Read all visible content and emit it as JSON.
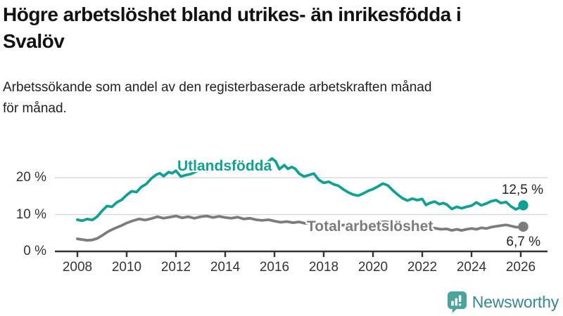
{
  "header": {
    "title": "Högre arbetslöshet bland utrikes- än inrikesfödda i\nSvalöv",
    "subtitle": "Arbetssökande som andel av den registerbaserade arbetskraften månad\nför månad."
  },
  "colors": {
    "accent_teal": "#13a094",
    "series_gray": "#7c7c7c",
    "gridline": "#dadada",
    "axis": "#333333",
    "logo_icon": "#4aa49b",
    "logo_text": "#3a868c"
  },
  "chart_data": {
    "type": "line",
    "title": "Högre arbetslöshet bland utrikes- än inrikesfödda i Svalöv",
    "xlabel": "",
    "ylabel": "",
    "grid": "horizontal",
    "legend_position": "inline-labels",
    "x_ticks": [
      2008,
      2010,
      2012,
      2014,
      2016,
      2018,
      2020,
      2022,
      2024,
      2026
    ],
    "x_tick_labels": [
      "2008",
      "2010",
      "2012",
      "2014",
      "2016",
      "2018",
      "2020",
      "2022",
      "2024",
      "2026"
    ],
    "y_ticks": [
      0,
      10,
      20
    ],
    "y_tick_labels": [
      "0 %",
      "10 %",
      "20 %"
    ],
    "xlim": [
      2007.1,
      2027.1
    ],
    "ylim": [
      0,
      29
    ],
    "series": [
      {
        "name": "Utlandsfödda",
        "color": "#13a094",
        "end_label": "12,5 %",
        "end_value": 12.5,
        "points": [
          [
            2008.0,
            8.6
          ],
          [
            2008.2,
            8.3
          ],
          [
            2008.4,
            8.8
          ],
          [
            2008.6,
            8.5
          ],
          [
            2008.8,
            9.4
          ],
          [
            2009.0,
            11.0
          ],
          [
            2009.2,
            12.3
          ],
          [
            2009.4,
            12.1
          ],
          [
            2009.6,
            13.3
          ],
          [
            2009.8,
            14.0
          ],
          [
            2010.0,
            15.3
          ],
          [
            2010.2,
            16.3
          ],
          [
            2010.4,
            16.1
          ],
          [
            2010.6,
            17.5
          ],
          [
            2010.8,
            18.3
          ],
          [
            2011.0,
            19.8
          ],
          [
            2011.2,
            20.8
          ],
          [
            2011.35,
            21.2
          ],
          [
            2011.5,
            20.4
          ],
          [
            2011.7,
            21.5
          ],
          [
            2011.85,
            21.2
          ],
          [
            2012.0,
            21.9
          ],
          [
            2012.2,
            20.3
          ],
          [
            2012.4,
            20.7
          ],
          [
            2012.6,
            21.0
          ],
          [
            2012.8,
            21.6
          ],
          [
            2013.0,
            22.3
          ],
          [
            2013.25,
            21.8
          ],
          [
            2013.5,
            22.4
          ],
          [
            2013.75,
            22.1
          ],
          [
            2014.0,
            22.7
          ],
          [
            2014.25,
            22.3
          ],
          [
            2014.5,
            23.0
          ],
          [
            2014.75,
            22.7
          ],
          [
            2015.0,
            23.3
          ],
          [
            2015.25,
            23.1
          ],
          [
            2015.5,
            23.6
          ],
          [
            2015.7,
            24.1
          ],
          [
            2015.9,
            25.2
          ],
          [
            2016.05,
            24.4
          ],
          [
            2016.2,
            22.3
          ],
          [
            2016.4,
            23.4
          ],
          [
            2016.55,
            22.4
          ],
          [
            2016.7,
            22.9
          ],
          [
            2016.85,
            22.4
          ],
          [
            2017.0,
            21.1
          ],
          [
            2017.2,
            20.3
          ],
          [
            2017.4,
            20.7
          ],
          [
            2017.6,
            21.1
          ],
          [
            2017.8,
            19.4
          ],
          [
            2018.0,
            18.6
          ],
          [
            2018.2,
            18.9
          ],
          [
            2018.4,
            18.2
          ],
          [
            2018.6,
            17.8
          ],
          [
            2018.8,
            16.8
          ],
          [
            2019.0,
            16.0
          ],
          [
            2019.2,
            15.4
          ],
          [
            2019.4,
            15.1
          ],
          [
            2019.6,
            15.7
          ],
          [
            2019.8,
            16.4
          ],
          [
            2020.0,
            16.9
          ],
          [
            2020.2,
            17.6
          ],
          [
            2020.4,
            18.4
          ],
          [
            2020.6,
            17.9
          ],
          [
            2020.8,
            16.6
          ],
          [
            2021.0,
            15.4
          ],
          [
            2021.2,
            14.4
          ],
          [
            2021.4,
            13.8
          ],
          [
            2021.6,
            14.3
          ],
          [
            2021.8,
            13.9
          ],
          [
            2022.0,
            14.2
          ],
          [
            2022.15,
            12.6
          ],
          [
            2022.3,
            13.1
          ],
          [
            2022.5,
            13.5
          ],
          [
            2022.7,
            12.8
          ],
          [
            2022.85,
            13.1
          ],
          [
            2023.0,
            12.7
          ],
          [
            2023.2,
            11.5
          ],
          [
            2023.4,
            12.1
          ],
          [
            2023.6,
            11.7
          ],
          [
            2023.8,
            12.1
          ],
          [
            2024.0,
            12.4
          ],
          [
            2024.2,
            13.3
          ],
          [
            2024.4,
            12.5
          ],
          [
            2024.6,
            13.0
          ],
          [
            2024.8,
            13.6
          ],
          [
            2025.0,
            13.9
          ],
          [
            2025.2,
            13.1
          ],
          [
            2025.4,
            13.4
          ],
          [
            2025.6,
            12.2
          ],
          [
            2025.8,
            11.4
          ],
          [
            2026.0,
            12.0
          ],
          [
            2026.1,
            12.5
          ]
        ]
      },
      {
        "name": "Total arbetslöshet",
        "color": "#7c7c7c",
        "end_label": "6,7 %",
        "end_value": 6.7,
        "points": [
          [
            2008.0,
            3.4
          ],
          [
            2008.2,
            3.2
          ],
          [
            2008.4,
            3.0
          ],
          [
            2008.6,
            3.1
          ],
          [
            2008.8,
            3.5
          ],
          [
            2009.0,
            4.3
          ],
          [
            2009.25,
            5.4
          ],
          [
            2009.5,
            6.2
          ],
          [
            2009.75,
            6.9
          ],
          [
            2010.0,
            7.7
          ],
          [
            2010.25,
            8.3
          ],
          [
            2010.5,
            8.8
          ],
          [
            2010.75,
            8.5
          ],
          [
            2011.0,
            8.9
          ],
          [
            2011.25,
            9.4
          ],
          [
            2011.5,
            9.0
          ],
          [
            2011.75,
            9.3
          ],
          [
            2012.0,
            9.6
          ],
          [
            2012.25,
            9.1
          ],
          [
            2012.5,
            9.4
          ],
          [
            2012.75,
            9.0
          ],
          [
            2013.0,
            9.4
          ],
          [
            2013.25,
            9.6
          ],
          [
            2013.5,
            9.2
          ],
          [
            2013.75,
            9.5
          ],
          [
            2014.0,
            9.2
          ],
          [
            2014.25,
            9.0
          ],
          [
            2014.5,
            9.3
          ],
          [
            2014.75,
            8.8
          ],
          [
            2015.0,
            9.0
          ],
          [
            2015.25,
            8.6
          ],
          [
            2015.5,
            8.4
          ],
          [
            2015.75,
            8.6
          ],
          [
            2016.0,
            8.2
          ],
          [
            2016.25,
            7.9
          ],
          [
            2016.5,
            8.1
          ],
          [
            2016.75,
            7.8
          ],
          [
            2017.0,
            8.0
          ],
          [
            2017.25,
            7.6
          ],
          [
            2017.5,
            7.9
          ],
          [
            2017.75,
            7.5
          ],
          [
            2018.0,
            7.7
          ],
          [
            2018.25,
            7.3
          ],
          [
            2018.5,
            7.5
          ],
          [
            2018.75,
            7.1
          ],
          [
            2019.0,
            7.2
          ],
          [
            2019.25,
            6.9
          ],
          [
            2019.5,
            7.1
          ],
          [
            2019.75,
            7.3
          ],
          [
            2020.0,
            7.6
          ],
          [
            2020.25,
            7.9
          ],
          [
            2020.5,
            8.1
          ],
          [
            2020.75,
            7.7
          ],
          [
            2021.0,
            7.4
          ],
          [
            2021.25,
            7.0
          ],
          [
            2021.5,
            6.7
          ],
          [
            2021.75,
            6.5
          ],
          [
            2022.0,
            6.4
          ],
          [
            2022.25,
            6.1
          ],
          [
            2022.5,
            6.3
          ],
          [
            2022.75,
            6.0
          ],
          [
            2023.0,
            6.1
          ],
          [
            2023.2,
            5.7
          ],
          [
            2023.4,
            6.0
          ],
          [
            2023.6,
            5.7
          ],
          [
            2023.8,
            6.0
          ],
          [
            2024.0,
            6.2
          ],
          [
            2024.2,
            6.0
          ],
          [
            2024.4,
            6.4
          ],
          [
            2024.6,
            6.2
          ],
          [
            2024.8,
            6.6
          ],
          [
            2025.0,
            6.8
          ],
          [
            2025.2,
            7.0
          ],
          [
            2025.4,
            7.2
          ],
          [
            2025.6,
            6.9
          ],
          [
            2025.8,
            6.6
          ],
          [
            2026.0,
            6.5
          ],
          [
            2026.1,
            6.7
          ]
        ]
      }
    ]
  },
  "annotations": {
    "series1_label": "Utlandsfödda",
    "series2_label": "Total arbetslöshet",
    "series1_value": "12,5 %",
    "series2_value": "6,7 %"
  },
  "logo": {
    "text": "Newsworthy",
    "icon": "newsworthy-chart-bubble-icon"
  }
}
